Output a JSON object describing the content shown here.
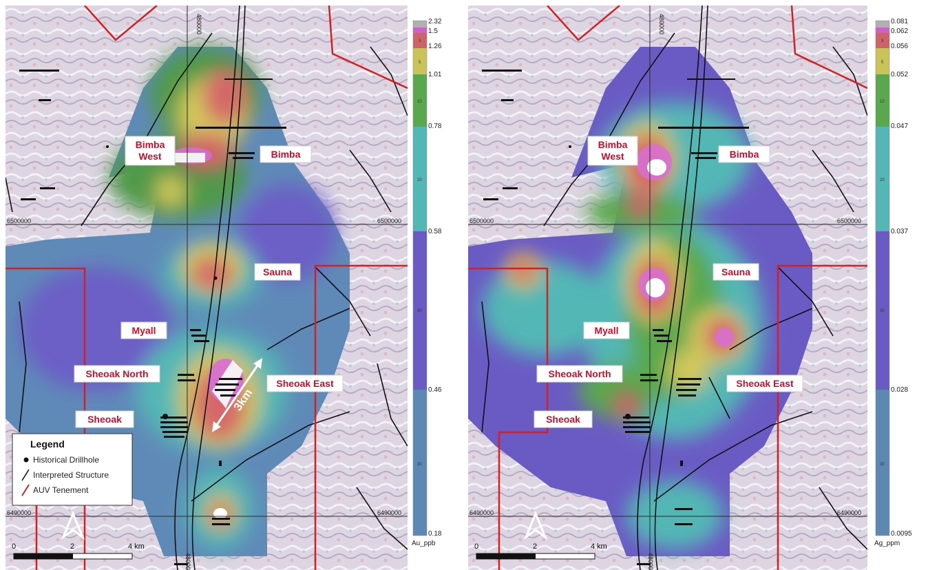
{
  "maps": [
    {
      "id": "au",
      "grid_labels": {
        "easting": "480000",
        "northing_upper": "6500000",
        "northing_lower": "6490000"
      },
      "colorbar": {
        "unit": "Au_ppb",
        "values": [
          "2.32",
          "1.5",
          "1.26",
          "1.01",
          "0.78",
          "0.58",
          "0.46",
          "0.18"
        ],
        "percentiles": [
          "3",
          "5",
          "10",
          "20",
          "30",
          "30"
        ],
        "colors": [
          "#b0b0b0",
          "#c963c9",
          "#d0626a",
          "#c9c35a",
          "#5aa84e",
          "#52b7b5",
          "#6a5bc4",
          "#5c88b3"
        ]
      },
      "prospects": [
        "Bimba West",
        "Bimba",
        "Sauna",
        "Myall",
        "Sheoak North",
        "Sheoak East",
        "Sheoak"
      ],
      "distance_label": "3km",
      "legend": {
        "title": "Legend",
        "items": [
          "Historical Drillhole",
          "Interpreted Structure",
          "AUV Tenement"
        ]
      },
      "scale": {
        "ticks": [
          "0",
          "2",
          "4 km"
        ]
      }
    },
    {
      "id": "ag",
      "grid_labels": {
        "easting": "480000",
        "northing_upper": "6500000",
        "northing_lower": "6490000"
      },
      "colorbar": {
        "unit": "Ag_ppm",
        "values": [
          "0.081",
          "0.062",
          "0.056",
          "0.052",
          "0.047",
          "0.037",
          "0.028",
          "0.0095"
        ],
        "percentiles": [
          "3",
          "5",
          "10",
          "20",
          "30",
          "30"
        ],
        "colors": [
          "#b0b0b0",
          "#c963c9",
          "#d0626a",
          "#c9c35a",
          "#5aa84e",
          "#52b7b5",
          "#6a5bc4",
          "#5c88b3"
        ]
      },
      "prospects": [
        "Bimba West",
        "Bimba",
        "Sauna",
        "Myall",
        "Sheoak North",
        "Sheoak East",
        "Sheoak"
      ],
      "scale": {
        "ticks": [
          "0",
          "2",
          "4 km"
        ]
      }
    }
  ],
  "style": {
    "tenement": "#d42020",
    "structure": "#111111",
    "label_text": "#c8102e"
  }
}
